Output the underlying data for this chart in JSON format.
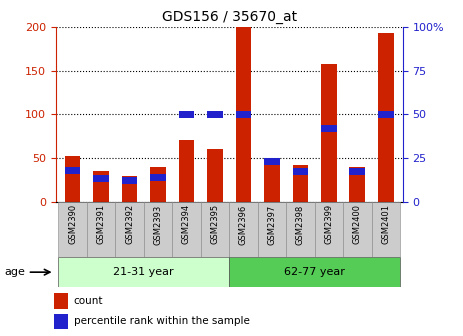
{
  "title": "GDS156 / 35670_at",
  "samples": [
    "GSM2390",
    "GSM2391",
    "GSM2392",
    "GSM2393",
    "GSM2394",
    "GSM2395",
    "GSM2396",
    "GSM2397",
    "GSM2398",
    "GSM2399",
    "GSM2400",
    "GSM2401"
  ],
  "count_values": [
    52,
    35,
    29,
    40,
    70,
    60,
    200,
    45,
    42,
    158,
    40,
    193
  ],
  "percentile_values": [
    18,
    13,
    12,
    14,
    50,
    50,
    50,
    23,
    17,
    42,
    17,
    50
  ],
  "groups": [
    {
      "label": "21-31 year",
      "start": 0,
      "end": 6
    },
    {
      "label": "62-77 year",
      "start": 6,
      "end": 12
    }
  ],
  "group_colors": [
    "#ccffcc",
    "#55cc55"
  ],
  "ylim_left": [
    0,
    200
  ],
  "ylim_right": [
    0,
    100
  ],
  "yticks_left": [
    0,
    50,
    100,
    150,
    200
  ],
  "yticks_right": [
    0,
    25,
    50,
    75,
    100
  ],
  "ytick_labels_right": [
    "0",
    "25",
    "50",
    "75",
    "100%"
  ],
  "bar_color_red": "#cc2200",
  "bar_color_blue": "#2222cc",
  "bar_width": 0.55,
  "blue_bar_height": 4,
  "grid_color": "black",
  "legend_count_label": "count",
  "legend_pct_label": "percentile rank within the sample",
  "age_label": "age",
  "background_color": "#ffffff",
  "tick_label_bg": "#cccccc",
  "left_axis_color": "#cc2200",
  "right_axis_color": "#2222cc"
}
